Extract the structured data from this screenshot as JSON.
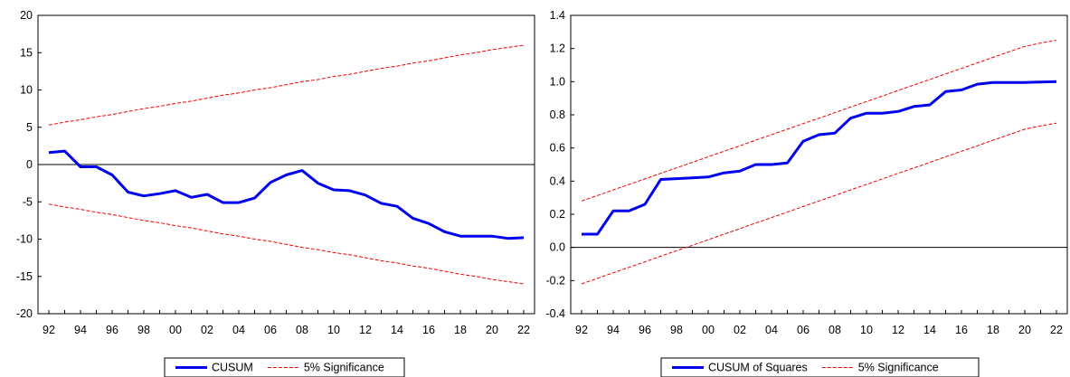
{
  "chart_data": [
    {
      "type": "line",
      "x": [
        "1992",
        "1993",
        "1994",
        "1995",
        "1996",
        "1997",
        "1998",
        "1999",
        "2000",
        "2001",
        "2002",
        "2003",
        "2004",
        "2005",
        "2006",
        "2007",
        "2008",
        "2009",
        "2010",
        "2011",
        "2012",
        "2013",
        "2014",
        "2015",
        "2016",
        "2017",
        "2018",
        "2019",
        "2020",
        "2021",
        "2022"
      ],
      "x_tick_labels": [
        "92",
        "94",
        "96",
        "98",
        "00",
        "02",
        "04",
        "06",
        "08",
        "10",
        "12",
        "14",
        "16",
        "18",
        "20",
        "22"
      ],
      "ylim": [
        -20,
        20
      ],
      "y_ticks": [
        -20,
        -15,
        -10,
        -5,
        0,
        5,
        10,
        15,
        20
      ],
      "y_tick_labels": [
        "-20",
        "-15",
        "-10",
        "-5",
        "0",
        "5",
        "10",
        "15",
        "20"
      ],
      "zero_line": true,
      "series": [
        {
          "name": "CUSUM",
          "color": "#0000ee",
          "style": "solid",
          "values": [
            1.6,
            1.8,
            -0.3,
            -0.3,
            -1.4,
            -3.7,
            -4.2,
            -3.9,
            -3.5,
            -4.4,
            -4.0,
            -5.1,
            -5.1,
            -4.5,
            -2.4,
            -1.4,
            -0.8,
            -2.5,
            -3.4,
            -3.5,
            -4.1,
            -5.2,
            -5.6,
            -7.2,
            -7.9,
            -9.0,
            -9.6,
            -9.6,
            -9.6,
            -9.9,
            -9.8
          ]
        },
        {
          "name": "5% Significance",
          "color": "#ee0000",
          "style": "dashed",
          "values": [
            5.3,
            5.7,
            6.0,
            6.4,
            6.7,
            7.1,
            7.5,
            7.8,
            8.2,
            8.5,
            8.9,
            9.3,
            9.6,
            10.0,
            10.3,
            10.7,
            11.1,
            11.4,
            11.8,
            12.1,
            12.5,
            12.9,
            13.2,
            13.6,
            13.9,
            14.3,
            14.7,
            15.0,
            15.4,
            15.7,
            16.0
          ]
        },
        {
          "name": "",
          "color": "#ee0000",
          "style": "dashed",
          "values": [
            -5.3,
            -5.7,
            -6.0,
            -6.4,
            -6.7,
            -7.1,
            -7.5,
            -7.8,
            -8.2,
            -8.5,
            -8.9,
            -9.3,
            -9.6,
            -10.0,
            -10.3,
            -10.7,
            -11.1,
            -11.4,
            -11.8,
            -12.1,
            -12.5,
            -12.9,
            -13.2,
            -13.6,
            -13.9,
            -14.3,
            -14.7,
            -15.0,
            -15.4,
            -15.7,
            -16.0
          ]
        }
      ],
      "legend": {
        "placement": "bottom-center",
        "entries": [
          "CUSUM",
          "5% Significance"
        ]
      }
    },
    {
      "type": "line",
      "x": [
        "1992",
        "1993",
        "1994",
        "1995",
        "1996",
        "1997",
        "1998",
        "1999",
        "2000",
        "2001",
        "2002",
        "2003",
        "2004",
        "2005",
        "2006",
        "2007",
        "2008",
        "2009",
        "2010",
        "2011",
        "2012",
        "2013",
        "2014",
        "2015",
        "2016",
        "2017",
        "2018",
        "2019",
        "2020",
        "2021",
        "2022"
      ],
      "x_tick_labels": [
        "92",
        "94",
        "96",
        "98",
        "00",
        "02",
        "04",
        "06",
        "08",
        "10",
        "12",
        "14",
        "16",
        "18",
        "20",
        "22"
      ],
      "ylim": [
        -0.4,
        1.4
      ],
      "y_ticks": [
        -0.4,
        -0.2,
        0.0,
        0.2,
        0.4,
        0.6,
        0.8,
        1.0,
        1.2,
        1.4
      ],
      "y_tick_labels": [
        "-0.4",
        "-0.2",
        "0.0",
        "0.2",
        "0.4",
        "0.6",
        "0.8",
        "1.0",
        "1.2",
        "1.4"
      ],
      "zero_line": true,
      "series": [
        {
          "name": "CUSUM of Squares",
          "color": "#0000ee",
          "style": "solid",
          "values": [
            0.08,
            0.08,
            0.22,
            0.22,
            0.26,
            0.41,
            0.415,
            0.42,
            0.425,
            0.45,
            0.46,
            0.5,
            0.5,
            0.51,
            0.64,
            0.68,
            0.69,
            0.78,
            0.81,
            0.81,
            0.82,
            0.85,
            0.86,
            0.94,
            0.95,
            0.985,
            0.995,
            0.995,
            0.995,
            0.998,
            1.0
          ]
        },
        {
          "name": "5% Significance",
          "color": "#ee0000",
          "style": "dashed",
          "values": [
            0.28,
            0.313,
            0.347,
            0.38,
            0.413,
            0.447,
            0.48,
            0.513,
            0.547,
            0.58,
            0.613,
            0.647,
            0.68,
            0.713,
            0.747,
            0.78,
            0.813,
            0.847,
            0.88,
            0.913,
            0.947,
            0.98,
            1.013,
            1.047,
            1.08,
            1.113,
            1.147,
            1.18,
            1.213,
            1.233,
            1.25
          ]
        },
        {
          "name": "",
          "color": "#ee0000",
          "style": "dashed",
          "values": [
            -0.22,
            -0.187,
            -0.153,
            -0.12,
            -0.087,
            -0.053,
            -0.02,
            0.013,
            0.047,
            0.08,
            0.113,
            0.147,
            0.18,
            0.213,
            0.247,
            0.28,
            0.313,
            0.347,
            0.38,
            0.413,
            0.447,
            0.48,
            0.513,
            0.547,
            0.58,
            0.613,
            0.647,
            0.68,
            0.713,
            0.733,
            0.75
          ]
        }
      ],
      "legend": {
        "placement": "bottom-center",
        "entries": [
          "CUSUM of Squares",
          "5% Significance"
        ]
      }
    }
  ]
}
